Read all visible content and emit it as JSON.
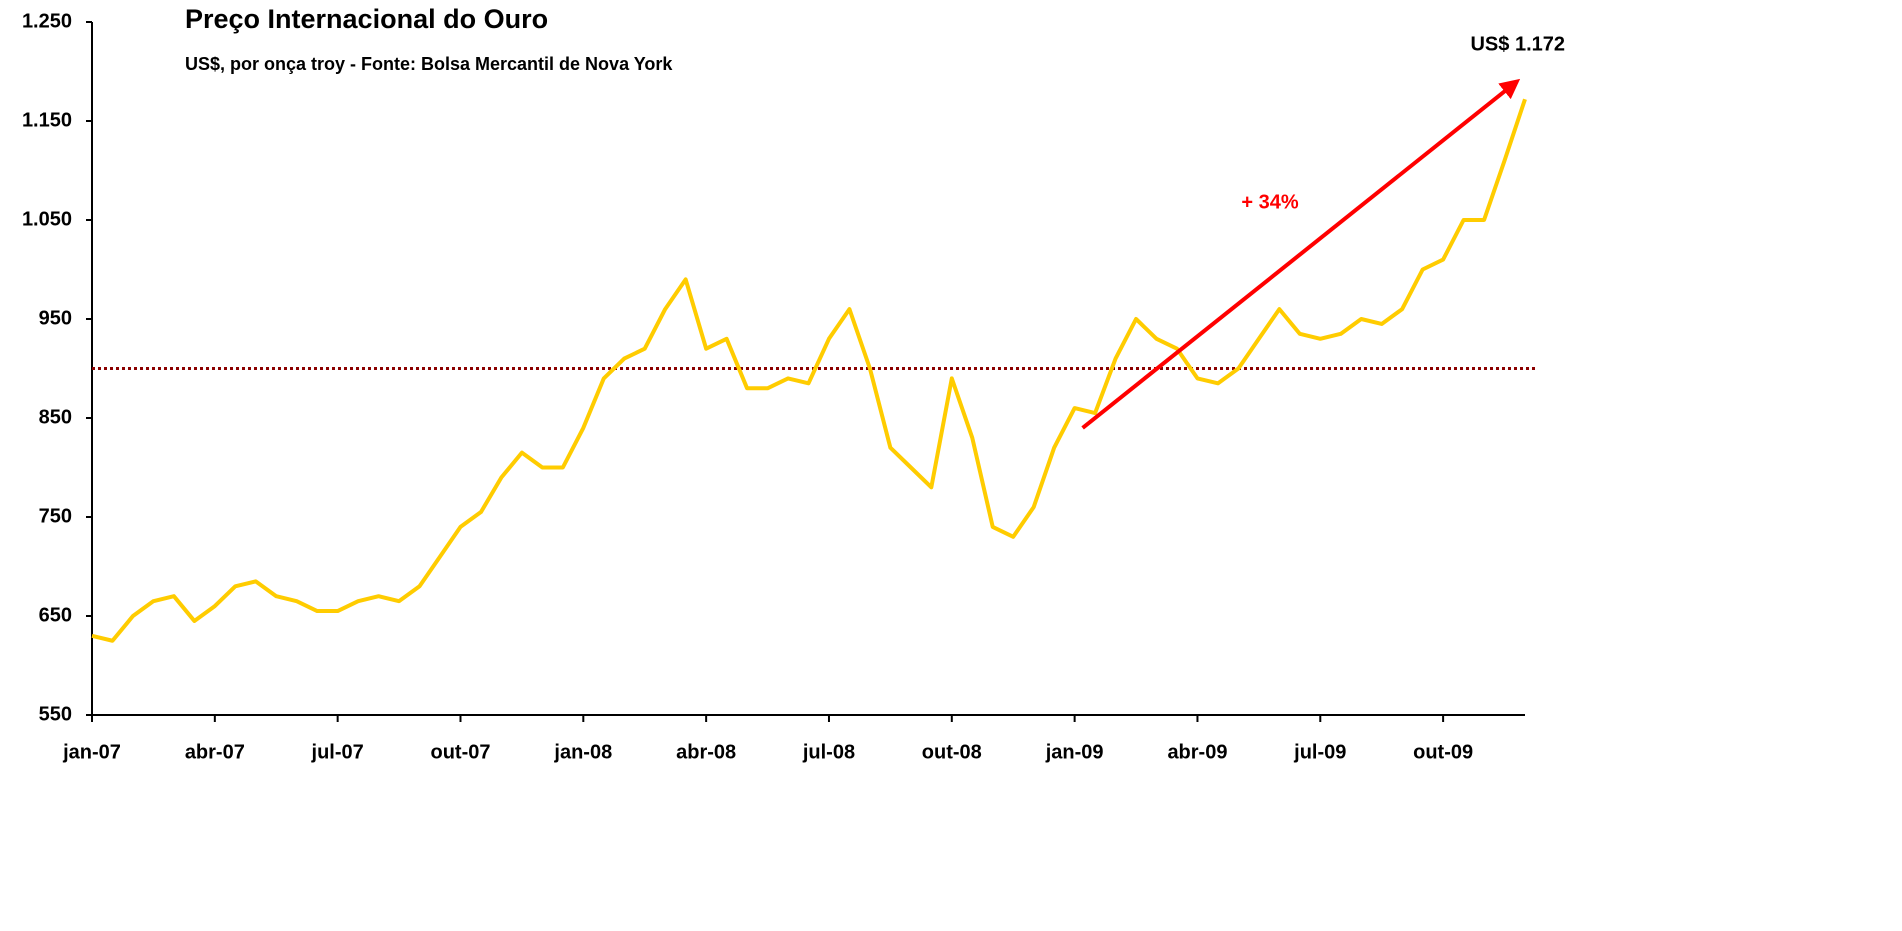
{
  "chart_data": {
    "type": "line",
    "title": "Preço Internacional do Ouro",
    "subtitle": "US$, por onça troy - Fonte: Bolsa Mercantil de Nova York",
    "categories": [
      "jan-07",
      null,
      null,
      null,
      null,
      null,
      "abr-07",
      null,
      null,
      null,
      null,
      null,
      "jul-07",
      null,
      null,
      null,
      null,
      null,
      "out-07",
      null,
      null,
      null,
      null,
      null,
      "jan-08",
      null,
      null,
      null,
      null,
      null,
      "abr-08",
      null,
      null,
      null,
      null,
      null,
      "jul-08",
      null,
      null,
      null,
      null,
      null,
      "out-08",
      null,
      null,
      null,
      null,
      null,
      "jan-09",
      null,
      null,
      null,
      null,
      null,
      "abr-09",
      null,
      null,
      null,
      null,
      null,
      "jul-09",
      null,
      null,
      null,
      null,
      null,
      "out-09",
      null,
      null,
      null,
      null
    ],
    "series": [
      {
        "name": "Ouro",
        "color": "#ffcc00",
        "values": [
          630,
          625,
          650,
          665,
          670,
          645,
          660,
          680,
          685,
          670,
          665,
          655,
          655,
          665,
          670,
          665,
          680,
          710,
          740,
          755,
          790,
          815,
          800,
          800,
          840,
          890,
          910,
          920,
          960,
          990,
          920,
          930,
          880,
          880,
          890,
          885,
          930,
          960,
          900,
          820,
          800,
          780,
          890,
          830,
          740,
          730,
          760,
          820,
          860,
          855,
          910,
          950,
          930,
          920,
          890,
          885,
          900,
          930,
          960,
          935,
          930,
          935,
          950,
          945,
          960,
          1000,
          1010,
          1050,
          1050,
          1110,
          1172
        ]
      }
    ],
    "ylim": [
      550,
      1250
    ],
    "yticks": [
      550,
      650,
      750,
      850,
      950,
      {
        "value": 1050,
        "label": "1.050"
      },
      {
        "value": 1150,
        "label": "1.150"
      },
      {
        "value": 1250,
        "label": "1.250"
      }
    ],
    "reference_line": {
      "value": 900,
      "color": "#8b0000"
    },
    "arrow": {
      "color": "#ff0000",
      "from_category": "jan-09",
      "values": [
        840,
        1190
      ]
    },
    "annotations": [
      {
        "text": "+ 34%",
        "color": "#ff0000"
      },
      {
        "text": "US$ 1.172",
        "color": "#000000"
      }
    ]
  }
}
